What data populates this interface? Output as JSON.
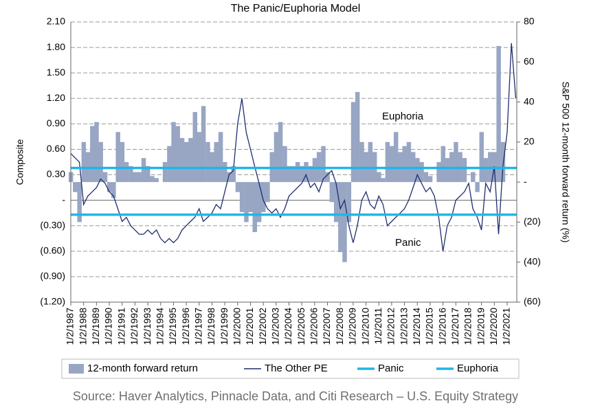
{
  "chart_data": {
    "type": "combo",
    "title": "The Panic/Euphoria Model",
    "y_label": "Composite",
    "y2_label": "S&P 500 12-month forward return (%)",
    "footnote": "Source: Haver Analytics, Pinnacle Data, and Citi Research – U.S. Equity Strategy",
    "annotations": [
      "Euphoria",
      "Panic"
    ],
    "xlim": [
      1987,
      2021.75
    ],
    "xticks": [
      {
        "value": 1987,
        "label": "1/2/1987"
      },
      {
        "value": 1988,
        "label": "1/2/1988"
      },
      {
        "value": 1989,
        "label": "1/2/1989"
      },
      {
        "value": 1990,
        "label": "1/2/1990"
      },
      {
        "value": 1991,
        "label": "1/2/1991"
      },
      {
        "value": 1992,
        "label": "1/2/1992"
      },
      {
        "value": 1993,
        "label": "1/2/1993"
      },
      {
        "value": 1994,
        "label": "1/2/1994"
      },
      {
        "value": 1995,
        "label": "1/2/1995"
      },
      {
        "value": 1996,
        "label": "1/2/1996"
      },
      {
        "value": 1997,
        "label": "1/2/1997"
      },
      {
        "value": 1998,
        "label": "1/2/1998"
      },
      {
        "value": 1999,
        "label": "1/2/1999"
      },
      {
        "value": 2000,
        "label": "1/2/2000"
      },
      {
        "value": 2001,
        "label": "1/2/2001"
      },
      {
        "value": 2002,
        "label": "1/2/2002"
      },
      {
        "value": 2003,
        "label": "1/2/2003"
      },
      {
        "value": 2004,
        "label": "1/2/2004"
      },
      {
        "value": 2005,
        "label": "1/2/2005"
      },
      {
        "value": 2006,
        "label": "1/2/2006"
      },
      {
        "value": 2007,
        "label": "1/2/2007"
      },
      {
        "value": 2008,
        "label": "1/2/2008"
      },
      {
        "value": 2009,
        "label": "1/2/2009"
      },
      {
        "value": 2010,
        "label": "1/2/2010"
      },
      {
        "value": 2011,
        "label": "1/2/2011"
      },
      {
        "value": 2012,
        "label": "1/2/2012"
      },
      {
        "value": 2013,
        "label": "1/2/2013"
      },
      {
        "value": 2014,
        "label": "1/2/2014"
      },
      {
        "value": 2015,
        "label": "1/2/2015"
      },
      {
        "value": 2016,
        "label": "1/2/2016"
      },
      {
        "value": 2017,
        "label": "1/2/2017"
      },
      {
        "value": 2018,
        "label": "1/2/2018"
      },
      {
        "value": 2019,
        "label": "1/2/2019"
      },
      {
        "value": 2020,
        "label": "1/2/2020"
      },
      {
        "value": 2021,
        "label": "1/2/2021"
      }
    ],
    "ylim": [
      -1.2,
      2.1
    ],
    "yticks": [
      {
        "value": -1.2,
        "label": "(1.20)"
      },
      {
        "value": -0.9,
        "label": "(0.90)"
      },
      {
        "value": -0.6,
        "label": "(0.60)"
      },
      {
        "value": -0.3,
        "label": "(0.30)"
      },
      {
        "value": 0,
        "label": "-"
      },
      {
        "value": 0.3,
        "label": "0.30"
      },
      {
        "value": 0.6,
        "label": "0.60"
      },
      {
        "value": 0.9,
        "label": "0.90"
      },
      {
        "value": 1.2,
        "label": "1.20"
      },
      {
        "value": 1.5,
        "label": "1.50"
      },
      {
        "value": 1.8,
        "label": "1.80"
      },
      {
        "value": 2.1,
        "label": "2.10"
      }
    ],
    "y2lim": [
      -60,
      80
    ],
    "y2ticks": [
      {
        "value": -60,
        "label": "(60)"
      },
      {
        "value": -40,
        "label": "(40)"
      },
      {
        "value": -20,
        "label": "(20)"
      },
      {
        "value": 0,
        "label": "-"
      },
      20,
      40,
      60,
      80
    ],
    "grid": true,
    "x": [
      1987,
      1987.33,
      1987.67,
      1988,
      1988.33,
      1988.67,
      1989,
      1989.33,
      1989.67,
      1990,
      1990.33,
      1990.67,
      1991,
      1991.33,
      1991.67,
      1992,
      1992.33,
      1992.67,
      1993,
      1993.33,
      1993.67,
      1994,
      1994.33,
      1994.67,
      1995,
      1995.33,
      1995.67,
      1996,
      1996.33,
      1996.67,
      1997,
      1997.33,
      1997.67,
      1998,
      1998.33,
      1998.67,
      1999,
      1999.33,
      1999.67,
      2000,
      2000.33,
      2000.67,
      2001,
      2001.33,
      2001.67,
      2002,
      2002.33,
      2002.67,
      2003,
      2003.33,
      2003.67,
      2004,
      2004.33,
      2004.67,
      2005,
      2005.33,
      2005.67,
      2006,
      2006.33,
      2006.67,
      2007,
      2007.33,
      2007.67,
      2008,
      2008.33,
      2008.67,
      2009,
      2009.33,
      2009.67,
      2010,
      2010.33,
      2010.67,
      2011,
      2011.33,
      2011.67,
      2012,
      2012.33,
      2012.67,
      2013,
      2013.33,
      2013.67,
      2014,
      2014.33,
      2014.67,
      2015,
      2015.33,
      2015.67,
      2016,
      2016.33,
      2016.67,
      2017,
      2017.33,
      2017.67,
      2018,
      2018.33,
      2018.67,
      2019,
      2019.33,
      2019.67,
      2020,
      2020.33,
      2020.67,
      2021,
      2021.33,
      2021.67
    ],
    "series": [
      {
        "name": "12-month forward return",
        "kind": "area",
        "axis": "y2",
        "color": "#98a6c4",
        "values": [
          5,
          -5,
          -20,
          20,
          15,
          28,
          30,
          20,
          5,
          -5,
          -8,
          25,
          20,
          10,
          8,
          5,
          5,
          12,
          8,
          3,
          2,
          0,
          10,
          18,
          30,
          28,
          22,
          20,
          22,
          35,
          25,
          38,
          20,
          15,
          20,
          25,
          10,
          5,
          8,
          -5,
          -15,
          -20,
          -15,
          -25,
          -20,
          -15,
          -10,
          15,
          25,
          30,
          18,
          8,
          8,
          10,
          8,
          10,
          8,
          12,
          15,
          18,
          5,
          -10,
          -20,
          -35,
          -40,
          -20,
          40,
          45,
          20,
          15,
          20,
          15,
          5,
          2,
          20,
          18,
          25,
          15,
          18,
          20,
          15,
          12,
          10,
          5,
          3,
          0,
          10,
          18,
          12,
          15,
          20,
          15,
          12,
          0,
          5,
          -5,
          25,
          12,
          15,
          15,
          68,
          20,
          null,
          null,
          null
        ]
      },
      {
        "name": "The Other PE",
        "kind": "line",
        "color": "#1f2d6e",
        "values": [
          0.55,
          0.5,
          0.45,
          -0.05,
          0.05,
          0.1,
          0.15,
          0.25,
          0.2,
          0.1,
          0.05,
          -0.1,
          -0.25,
          -0.2,
          -0.3,
          -0.35,
          -0.4,
          -0.4,
          -0.35,
          -0.4,
          -0.35,
          -0.45,
          -0.5,
          -0.45,
          -0.5,
          -0.45,
          -0.35,
          -0.3,
          -0.25,
          -0.2,
          -0.1,
          -0.25,
          -0.2,
          -0.15,
          -0.05,
          -0.1,
          0.1,
          0.3,
          0.35,
          0.9,
          1.2,
          0.8,
          0.6,
          0.4,
          0.2,
          0,
          -0.1,
          -0.15,
          -0.1,
          -0.2,
          -0.1,
          0.05,
          0.1,
          0.15,
          0.2,
          0.3,
          0.15,
          0.2,
          0.1,
          0.25,
          0.3,
          0.35,
          0.2,
          -0.1,
          0,
          -0.3,
          -0.5,
          -0.3,
          0,
          0.1,
          -0.05,
          -0.1,
          0.05,
          -0.05,
          -0.3,
          -0.25,
          -0.2,
          -0.15,
          -0.1,
          0,
          0.15,
          0.3,
          0.2,
          0.1,
          0.15,
          0.05,
          -0.2,
          -0.6,
          -0.3,
          -0.2,
          0,
          0.05,
          0.1,
          0.2,
          -0.1,
          -0.2,
          -0.35,
          0.2,
          0.1,
          0.4,
          -0.4,
          0.4,
          0.8,
          1.85,
          1.2
        ]
      },
      {
        "name": "Panic",
        "kind": "hline",
        "color": "#1fb6e8",
        "value": -0.17
      },
      {
        "name": "Euphoria",
        "kind": "hline",
        "color": "#1fb6e8",
        "value": 0.38
      }
    ]
  }
}
